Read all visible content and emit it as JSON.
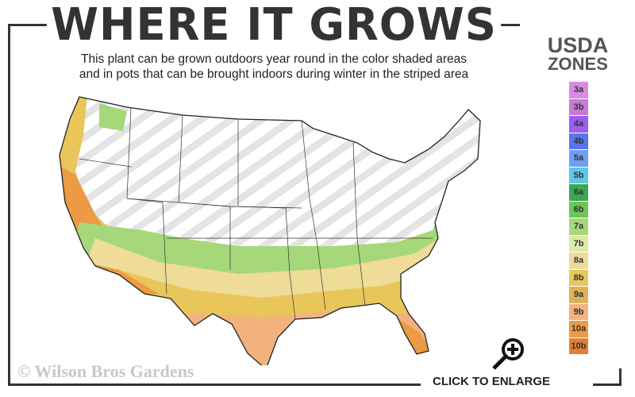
{
  "header": {
    "title": "WHERE IT GROWS",
    "subtitle_line1": "This plant can be grown outdoors year round in the color shaded areas",
    "subtitle_line2": "and in pots that can be brought indoors during winter in the striped area"
  },
  "legend": {
    "title_line1": "USDA",
    "title_line2": "ZONES",
    "zones": [
      {
        "label": "3a",
        "color": "#d98be0"
      },
      {
        "label": "3b",
        "color": "#c57ad8"
      },
      {
        "label": "4a",
        "color": "#9a5ef0"
      },
      {
        "label": "4b",
        "color": "#5a74ea"
      },
      {
        "label": "5a",
        "color": "#6e9ef2"
      },
      {
        "label": "5b",
        "color": "#5ec6e6"
      },
      {
        "label": "6a",
        "color": "#3aa84e"
      },
      {
        "label": "6b",
        "color": "#6cc45a"
      },
      {
        "label": "7a",
        "color": "#a6d87a"
      },
      {
        "label": "7b",
        "color": "#dceaa8"
      },
      {
        "label": "8a",
        "color": "#eedc98"
      },
      {
        "label": "8b",
        "color": "#e8c65a"
      },
      {
        "label": "9a",
        "color": "#ddb25a"
      },
      {
        "label": "9b",
        "color": "#f2b27e"
      },
      {
        "label": "10a",
        "color": "#ec9a44"
      },
      {
        "label": "10b",
        "color": "#e47e34"
      }
    ]
  },
  "footer": {
    "copyright": "© Wilson Bros Gardens",
    "enlarge_label": "CLICK TO ENLARGE",
    "enlarge_icon": "magnifier-plus-icon"
  }
}
